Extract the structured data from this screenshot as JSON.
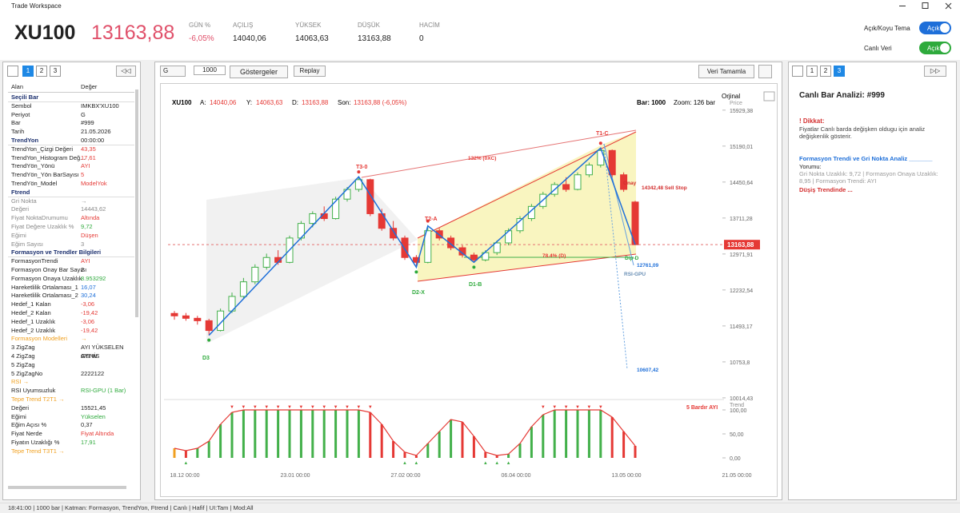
{
  "window": {
    "title": "Trade Workspace"
  },
  "header": {
    "symbol": "XU100",
    "price": "13163,88",
    "stats": [
      {
        "label": "GÜN %",
        "value": "-6,05%"
      },
      {
        "label": "AÇILIŞ",
        "value": "14040,06"
      },
      {
        "label": "YÜKSEK",
        "value": "14063,63"
      },
      {
        "label": "DÜŞÜK",
        "value": "13163,88"
      },
      {
        "label": "HACİM",
        "value": "0"
      }
    ],
    "toggles": [
      {
        "label": "Açık/Koyu Tema",
        "state": "Açık"
      },
      {
        "label": "Canlı Veri",
        "state": "Açık"
      }
    ]
  },
  "left_panel": {
    "tabs": [
      "1",
      "2",
      "3"
    ],
    "active_tab": 0,
    "collapse": "◁◁",
    "columns": [
      "Alan",
      "Değer"
    ],
    "rows": [
      {
        "section": "Seçili Bar"
      },
      {
        "k": "Sembol",
        "v": "IMKBX'XU100"
      },
      {
        "k": "Periyot",
        "v": "G"
      },
      {
        "k": "Bar",
        "v": "#999"
      },
      {
        "k": "Tarih",
        "v": "21.05.2026 00:00:00"
      },
      {
        "section": "TrendYon"
      },
      {
        "k": "TrendYon_Çizgi Değeri",
        "v": "43,35",
        "color": "#e53935"
      },
      {
        "k": "TrendYon_Histogram Değ...",
        "v": "17,61",
        "color": "#e53935"
      },
      {
        "k": "TrendYön_Yönü",
        "v": "AYI",
        "color": "#e53935"
      },
      {
        "k": "TrendYön_Yön BarSayısı",
        "v": "5",
        "color": "#e53935"
      },
      {
        "k": "TrendYön_Model",
        "v": "ModelYok",
        "color": "#e53935"
      },
      {
        "section": "Ftrend"
      },
      {
        "k": "Gri Nokta",
        "v": "→",
        "color": "#888888",
        "kcolor": "#888888"
      },
      {
        "k": "Değeri",
        "v": "14443,62",
        "color": "#888888",
        "kcolor": "#888888"
      },
      {
        "k": "Fiyat NoktaDrumumu",
        "v": "Altında",
        "color": "#e53935",
        "kcolor": "#888888"
      },
      {
        "k": "Fiyat Değere Uzaklık %",
        "v": "9,72",
        "color": "#2eaa3c",
        "kcolor": "#888888"
      },
      {
        "k": "Eğimi",
        "v": "Düşen",
        "color": "#e53935",
        "kcolor": "#888888"
      },
      {
        "k": "Eğim Sayısı",
        "v": "3",
        "color": "#888888",
        "kcolor": "#888888"
      },
      {
        "section": "Formasyon ve Trendler Bilgileri"
      },
      {
        "k": "FormasyonTrendi",
        "v": "AYI",
        "color": "#e53935"
      },
      {
        "k": "Formasyon Onay Bar Sayısı",
        "v": "2"
      },
      {
        "k": "Formasyon Onaya Uzaklık",
        "v": "8.953292",
        "color": "#2eaa3c"
      },
      {
        "k": "Hareketlilik Ortalaması_1",
        "v": "16,07",
        "color": "#1e6fd9"
      },
      {
        "k": "Hareketlilik Ortalaması_2",
        "v": "30,24",
        "color": "#1e6fd9"
      },
      {
        "k": "Hedef_1 Kalan",
        "v": "-3,06",
        "color": "#e53935"
      },
      {
        "k": "Hedef_2 Kalan",
        "v": "-19,42",
        "color": "#e53935"
      },
      {
        "k": "Hedef_1 Uzaklık",
        "v": "-3,06",
        "color": "#e53935"
      },
      {
        "k": "Hedef_2 Uzaklık",
        "v": "-19,42",
        "color": "#e53935"
      },
      {
        "k": "Formasyon Modelleri",
        "v": "→",
        "color": "#f0a020",
        "kcolor": "#f0a020"
      },
      {
        "k": "3 ZigZag",
        "v": "AYI YÜKSELEN GENİS"
      },
      {
        "k": "4 ZigZag",
        "v": "AYI W"
      },
      {
        "k": "5 ZigZag"
      },
      {
        "k": "5 ZigZagNo",
        "v": "2222122"
      },
      {
        "k": "RSI →",
        "kcolor": "#f0a020"
      },
      {
        "k": "RSI Uyumsuzluk",
        "v": "RSI-GPU (1 Bar)",
        "color": "#2eaa3c"
      },
      {
        "k": "Tepe Trend T2T1 →",
        "kcolor": "#f0a020"
      },
      {
        "k": "Değeri",
        "v": "15521,45"
      },
      {
        "k": "Eğimi",
        "v": "Yükselen",
        "color": "#2eaa3c"
      },
      {
        "k": "Eğim Açısı %",
        "v": "0,37"
      },
      {
        "k": "Fiyat Nerde",
        "v": "Fiyat Altında",
        "color": "#e53935"
      },
      {
        "k": "Fiyatın Uzaklığı %",
        "v": "17,91",
        "color": "#2eaa3c"
      },
      {
        "k": "Tepe Trend T3T1 →",
        "kcolor": "#f0a020"
      }
    ]
  },
  "toolbar": {
    "period": "G",
    "bar_count": "1000",
    "indicators": "Göstergeler",
    "replay": "Replay",
    "complete": "Veri Tamamla"
  },
  "chart_data": {
    "type": "candlestick",
    "symbol": "XU100",
    "info": [
      {
        "k": "A:",
        "v": "14040,06"
      },
      {
        "k": "Y:",
        "v": "14063,63"
      },
      {
        "k": "D:",
        "v": "13163,88"
      },
      {
        "k": "Son:",
        "v": "13163,88 (-6,05%)"
      }
    ],
    "bar": "Bar: 1000",
    "zoom": "Zoom: 126 bar",
    "scale_mode": "Orjinal",
    "axis_label": "Price",
    "up_color": "#43b04a",
    "down_color": "#e53935",
    "candles": [
      [
        11750,
        11800,
        11620,
        11700
      ],
      [
        11700,
        11760,
        11600,
        11650
      ],
      [
        11650,
        11700,
        11520,
        11600
      ],
      [
        11600,
        11640,
        11300,
        11400
      ],
      [
        11400,
        11850,
        11380,
        11800
      ],
      [
        11800,
        12180,
        11760,
        12100
      ],
      [
        12100,
        12480,
        12050,
        12400
      ],
      [
        12400,
        12760,
        12350,
        12700
      ],
      [
        12700,
        12980,
        12650,
        12900
      ],
      [
        12900,
        13050,
        12750,
        12800
      ],
      [
        12800,
        13350,
        12780,
        13300
      ],
      [
        13300,
        13650,
        13250,
        13600
      ],
      [
        13600,
        13850,
        13520,
        13800
      ],
      [
        13800,
        13950,
        13650,
        13700
      ],
      [
        13700,
        14150,
        13680,
        14100
      ],
      [
        14100,
        14350,
        14050,
        14300
      ],
      [
        14300,
        14560,
        14250,
        14500
      ],
      [
        14500,
        14520,
        13750,
        13800
      ],
      [
        13800,
        13900,
        13450,
        13500
      ],
      [
        13500,
        13650,
        13250,
        13300
      ],
      [
        13300,
        13350,
        12850,
        12900
      ],
      [
        12900,
        12950,
        12700,
        12800
      ],
      [
        12800,
        13550,
        12780,
        13450
      ],
      [
        13450,
        13500,
        13250,
        13300
      ],
      [
        13300,
        13350,
        13050,
        13100
      ],
      [
        13100,
        13150,
        12900,
        12950
      ],
      [
        12950,
        13000,
        12800,
        12850
      ],
      [
        12850,
        13050,
        12820,
        13000
      ],
      [
        13000,
        13250,
        12950,
        13200
      ],
      [
        13200,
        13500,
        13150,
        13450
      ],
      [
        13450,
        13750,
        13400,
        13700
      ],
      [
        13700,
        14000,
        13650,
        13950
      ],
      [
        13950,
        14250,
        13900,
        14200
      ],
      [
        14200,
        14450,
        14150,
        14400
      ],
      [
        14400,
        14550,
        14250,
        14300
      ],
      [
        14300,
        14650,
        14280,
        14600
      ],
      [
        14600,
        14850,
        14550,
        14800
      ],
      [
        14800,
        15150,
        14750,
        15100
      ],
      [
        15100,
        15120,
        14550,
        14600
      ],
      [
        14600,
        14650,
        14250,
        14300
      ],
      [
        14040.06,
        14063.63,
        13163.88,
        13163.88
      ]
    ],
    "ylim": [
      9980,
      16140
    ],
    "yticks": [
      {
        "value": 15929.38,
        "label": "15929,38"
      },
      {
        "value": 15190.01,
        "label": "15190,01"
      },
      {
        "value": 14450.64,
        "label": "14450,64"
      },
      {
        "value": 13711.28,
        "label": "13711,28"
      },
      {
        "value": 12971.91,
        "label": "12971,91"
      },
      {
        "value": 12232.54,
        "label": "12232,54"
      },
      {
        "value": 11493.17,
        "label": "11493,17"
      },
      {
        "value": 10753.8,
        "label": "10753,8"
      },
      {
        "value": 10014.43,
        "label": "10014,43"
      }
    ],
    "current_price": {
      "value": 13163.88,
      "label": "13163,88"
    },
    "xtick_labels": [
      "18.12 00:00",
      "23.01 00:00",
      "27.02 00:00",
      "06.04 00:00",
      "13.05 00:00",
      "21.05 00:00"
    ],
    "annotations": [
      {
        "text": "T3-0",
        "color": "#e53935"
      },
      {
        "text": "T2-A",
        "color": "#e53935"
      },
      {
        "text": "T1-C",
        "color": "#e53935"
      },
      {
        "text": "D3",
        "color": "#2eaa3c"
      },
      {
        "text": "D2-X",
        "color": "#2eaa3c"
      },
      {
        "text": "D1-B",
        "color": "#2eaa3c"
      },
      {
        "text": "132% (0XC)",
        "color": "#e53935"
      },
      {
        "text": "78.4% (D)",
        "color": "#e53935"
      },
      {
        "text": "14342,48 Sell Stop",
        "color": "#d32f2f"
      },
      {
        "text": "12761,09",
        "color": "#1e6fd9"
      },
      {
        "text": "10607,42",
        "color": "#1e6fd9"
      },
      {
        "text": "RSI-GPU",
        "color": "#6a8fb5"
      },
      {
        "text": "Dip-D",
        "color": "#2eaa3c"
      },
      {
        "text": "Onay",
        "color": "#d32f2f"
      }
    ],
    "oscillator": {
      "label": "Trend",
      "signal": "5 Bardır AYI",
      "ylim": [
        0,
        100
      ],
      "yticks": [
        {
          "value": 100,
          "label": "100,00"
        },
        {
          "value": 50,
          "label": "50,00"
        },
        {
          "value": 0,
          "label": "0,00"
        }
      ],
      "values": [
        20,
        15,
        20,
        35,
        70,
        95,
        100,
        100,
        100,
        100,
        100,
        100,
        100,
        100,
        100,
        100,
        100,
        95,
        70,
        35,
        12,
        5,
        30,
        55,
        80,
        75,
        45,
        12,
        5,
        8,
        30,
        65,
        90,
        100,
        100,
        100,
        100,
        100,
        85,
        55,
        25
      ]
    }
  },
  "right_panel": {
    "tabs": [
      "1",
      "2",
      "3"
    ],
    "active_tab": 2,
    "expand": "▷▷",
    "title": "Canlı Bar Analizi: #999",
    "warning_title": "! Dikkat:",
    "warning_text": "Fiyatlar Canlı barda değişken oldugu için analiz değişkenlik gösterir.",
    "section_title": "Formasyon Trendi ve Gri Nokta Analiz _______",
    "comment_label": "Yorumu:",
    "comment": "Gri Nokta Uzaklık: 9,72 | Formasyon Onaya Uzaklık: 8,95 | Formasyon Trendi: AYI",
    "conclusion": "Düşiş Trendinde ..."
  },
  "status_bar": "18:41:00 | 1000 bar | Katman: Formasyon, TrendYon, Ftrend | Canlı | Hafif | UI:Tam | Mod:All"
}
